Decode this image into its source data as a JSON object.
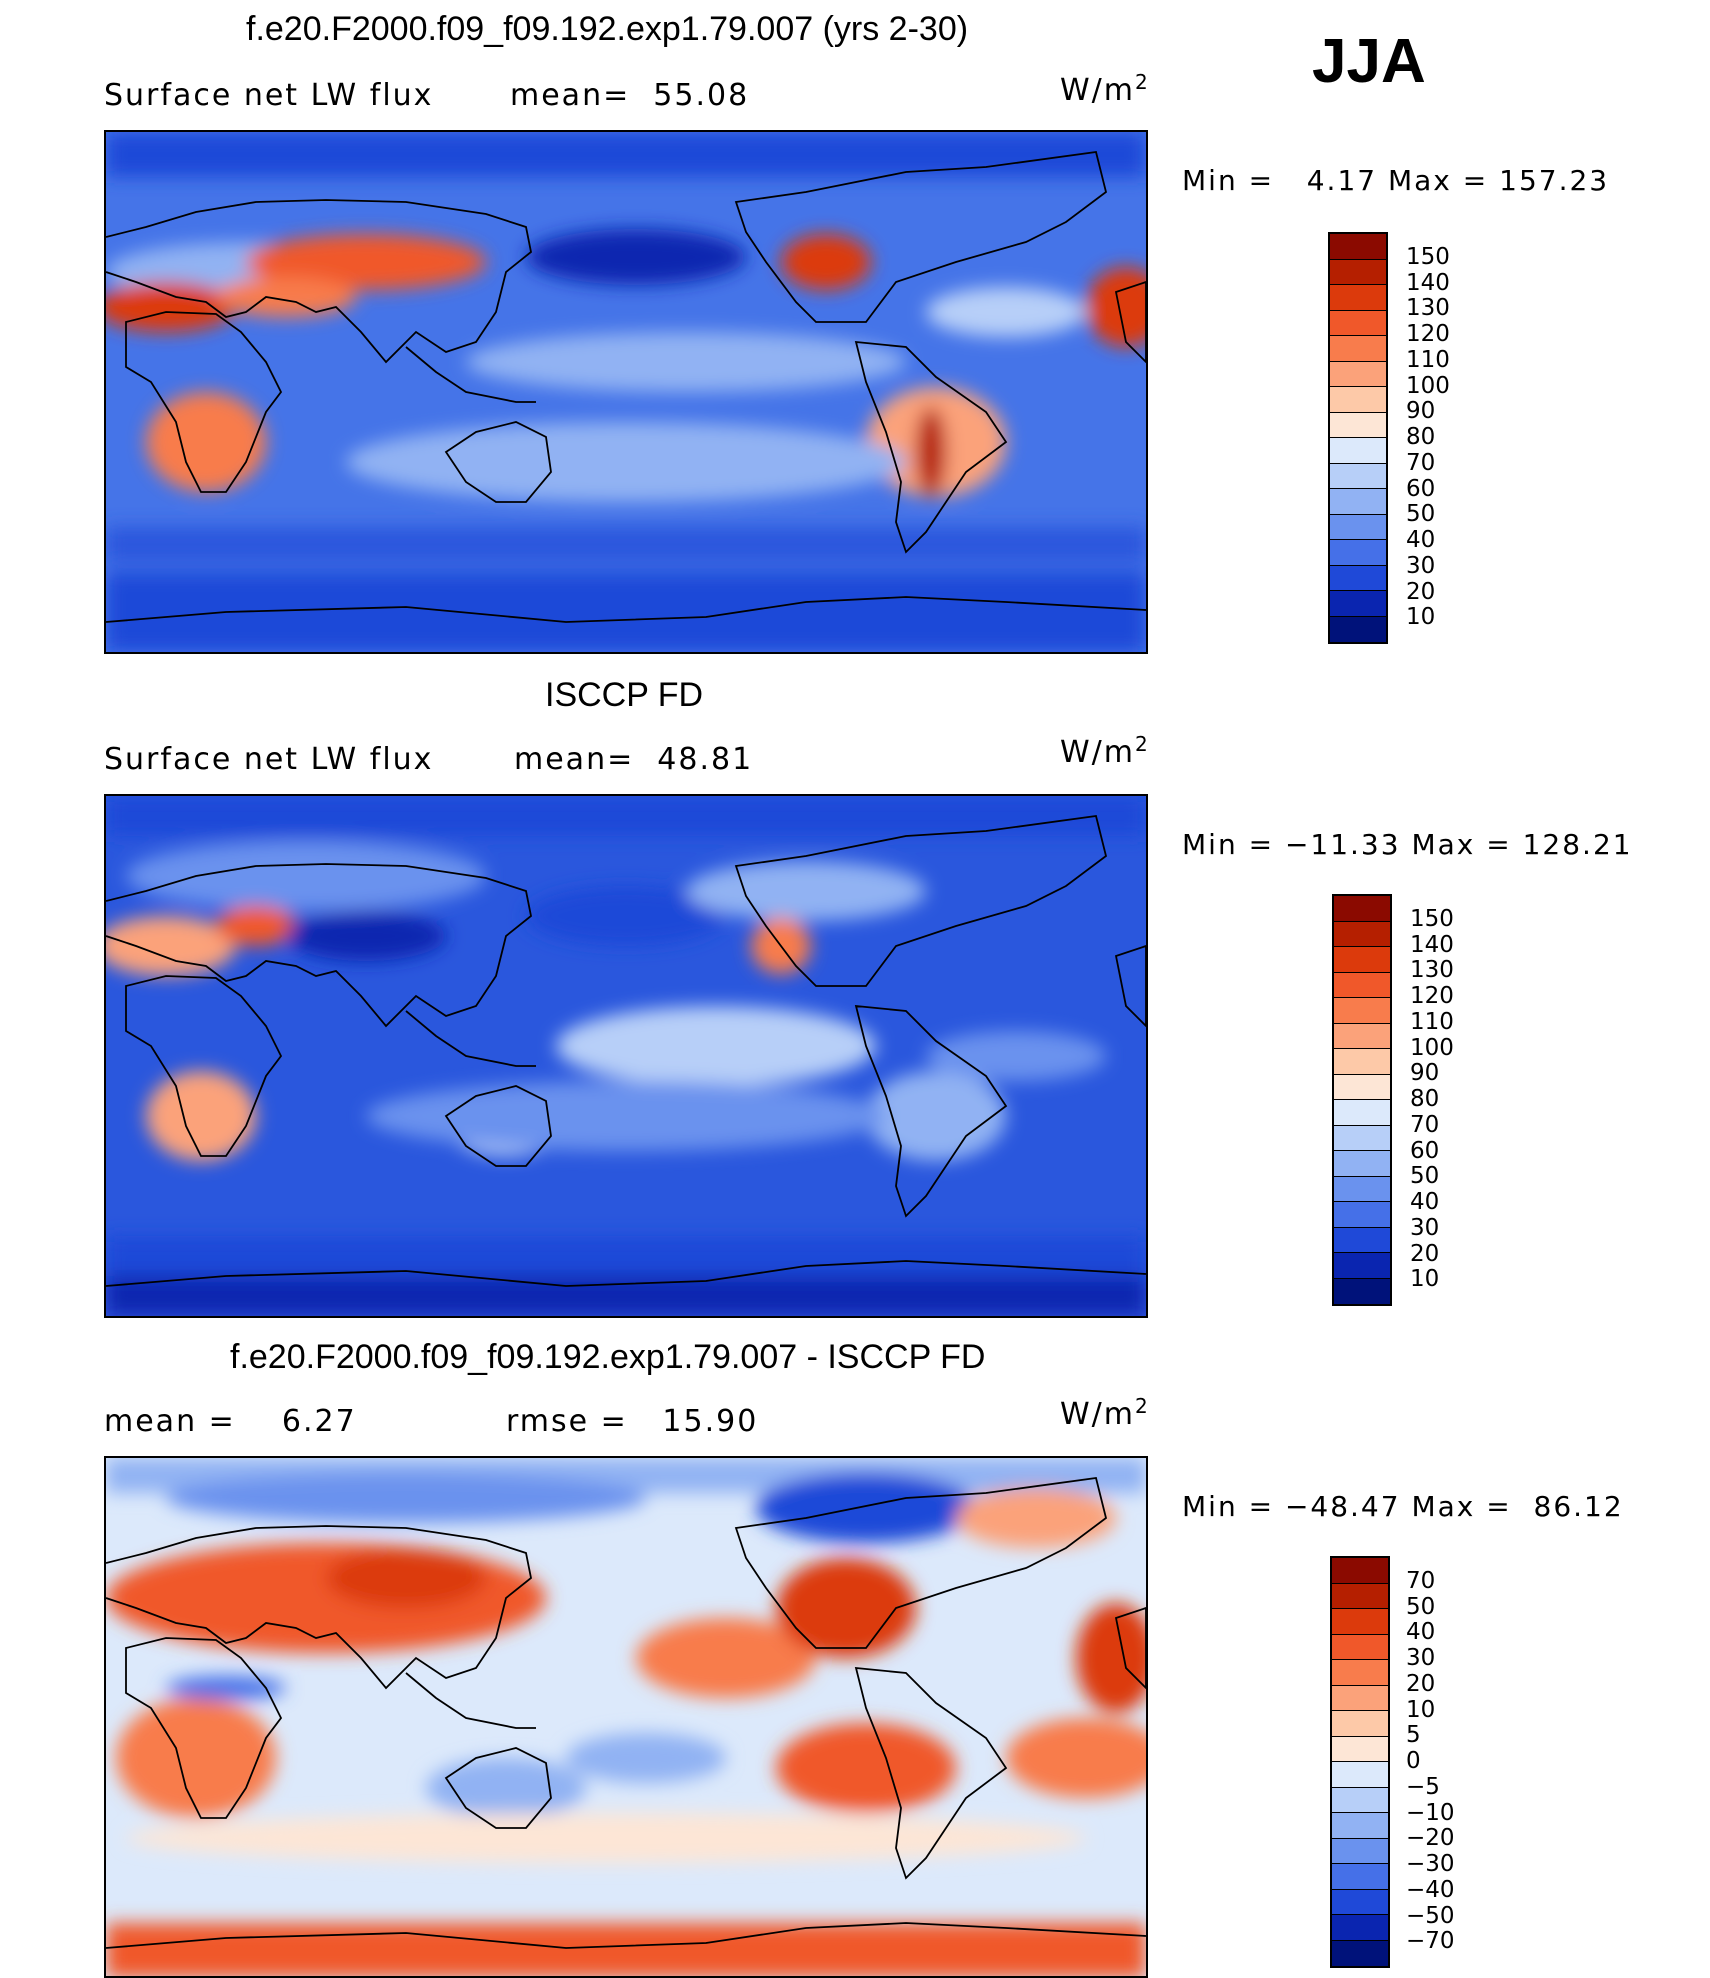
{
  "season": "JJA",
  "units_text": "W/m",
  "units_exp": "2",
  "panels": [
    {
      "title": "f.e20.F2000.f09_f09.192.exp1.79.007 (yrs 2-30)",
      "left_label": "Surface net LW flux",
      "right_label": "mean=  55.08",
      "minmax": "Min =   4.17 Max = 157.23",
      "colorbar": {
        "labels": [
          "150",
          "140",
          "130",
          "120",
          "110",
          "100",
          "90",
          "80",
          "70",
          "60",
          "50",
          "40",
          "30",
          "20",
          "10"
        ],
        "colors": [
          "#8b0a00",
          "#b51f00",
          "#dc3a0c",
          "#f0582a",
          "#f87c4c",
          "#fba27a",
          "#fdc9a8",
          "#fde6d6",
          "#dce9fb",
          "#b7cff8",
          "#91b2f3",
          "#6a92ee",
          "#4570e8",
          "#1f49d8",
          "#0a25b0",
          "#00127a"
        ]
      }
    },
    {
      "title": "ISCCP FD",
      "left_label": "Surface net LW flux",
      "right_label": "mean=  48.81",
      "minmax": "Min = −11.33 Max = 128.21",
      "colorbar": {
        "labels": [
          "150",
          "140",
          "130",
          "120",
          "110",
          "100",
          "90",
          "80",
          "70",
          "60",
          "50",
          "40",
          "30",
          "20",
          "10"
        ],
        "colors": [
          "#8b0a00",
          "#b51f00",
          "#dc3a0c",
          "#f0582a",
          "#f87c4c",
          "#fba27a",
          "#fdc9a8",
          "#fde6d6",
          "#dce9fb",
          "#b7cff8",
          "#91b2f3",
          "#6a92ee",
          "#4570e8",
          "#1f49d8",
          "#0a25b0",
          "#00127a"
        ]
      }
    },
    {
      "title": "f.e20.F2000.f09_f09.192.exp1.79.007 - ISCCP FD",
      "left_label": "mean =    6.27",
      "right_label": "rmse =   15.90",
      "minmax": "Min = −48.47 Max =  86.12",
      "colorbar": {
        "labels": [
          "70",
          "50",
          "40",
          "30",
          "20",
          "10",
          "5",
          "0",
          "−5",
          "−10",
          "−20",
          "−30",
          "−40",
          "−50",
          "−70"
        ],
        "colors": [
          "#8b0a00",
          "#b51f00",
          "#dc3a0c",
          "#f0582a",
          "#f87c4c",
          "#fba27a",
          "#fdc9a8",
          "#fde6d6",
          "#dce9fb",
          "#b7cff8",
          "#91b2f3",
          "#6a92ee",
          "#4570e8",
          "#1f49d8",
          "#0a25b0",
          "#00127a"
        ]
      }
    }
  ]
}
